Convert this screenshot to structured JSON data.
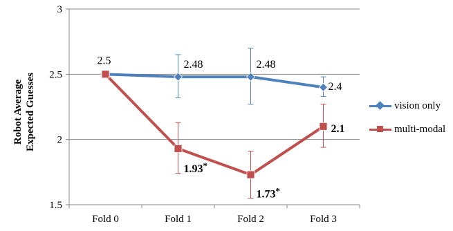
{
  "chart_data": {
    "type": "line",
    "title": "",
    "xlabel": "",
    "ylabel": "Robot Average\nExpected Guesses",
    "categories": [
      "Fold 0",
      "Fold 1",
      "Fold 2",
      "Fold 3"
    ],
    "ylim": [
      1.5,
      3
    ],
    "y_ticks": [
      "1.5",
      "2",
      "2.5",
      "3"
    ],
    "grid": "horizontal",
    "legend_position": "right",
    "series": [
      {
        "name": "vision only",
        "color": "#4f81bd",
        "marker": "diamond",
        "values": [
          2.5,
          2.48,
          2.48,
          2.4
        ],
        "error_low": [
          2.5,
          2.32,
          2.27,
          2.33
        ],
        "error_high": [
          2.5,
          2.65,
          2.7,
          2.48
        ],
        "data_labels": [
          "2.5",
          "2.48",
          "2.48",
          "2.4"
        ],
        "label_bold": [
          false,
          false,
          false,
          false
        ]
      },
      {
        "name": "multi-modal",
        "color": "#c0504d",
        "marker": "square",
        "values": [
          2.5,
          1.93,
          1.73,
          2.1
        ],
        "error_low": [
          2.5,
          1.74,
          1.55,
          1.94
        ],
        "error_high": [
          2.5,
          2.13,
          1.91,
          2.27
        ],
        "data_labels": [
          "",
          "1.93*",
          "1.73*",
          "2.1"
        ],
        "label_bold": [
          false,
          true,
          true,
          true
        ]
      }
    ]
  }
}
